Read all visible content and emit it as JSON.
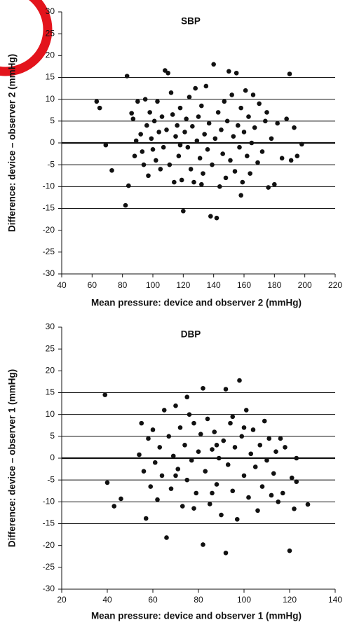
{
  "chart_data": [
    {
      "type": "scatter",
      "title": "SBP",
      "x_label": "Mean pressure: device and observer 2 (mmHg)",
      "y_label": "Difference: device – observer 2 (mmHg)",
      "color": "#111111",
      "xlim": [
        40,
        220
      ],
      "xticks": [
        40,
        60,
        80,
        100,
        120,
        140,
        160,
        180,
        200,
        220
      ],
      "ylim": [
        -30,
        30
      ],
      "yticks": [
        -30,
        -25,
        -20,
        -15,
        -10,
        -5,
        0,
        5,
        10,
        15,
        20,
        25,
        30
      ],
      "hlines": [
        15,
        10,
        5,
        0,
        -5,
        -10,
        -15
      ],
      "x": [
        63,
        65,
        69,
        73,
        83,
        82,
        84,
        86,
        87,
        88,
        89,
        90,
        92,
        93,
        94,
        95,
        96,
        97,
        98,
        99,
        100,
        101,
        102,
        103,
        104,
        105,
        106,
        107,
        108,
        109,
        110,
        111,
        112,
        113,
        114,
        115,
        116,
        117,
        118,
        119,
        120,
        121,
        122,
        123,
        124,
        125,
        126,
        127,
        128,
        129,
        130,
        131,
        132,
        133,
        134,
        135,
        136,
        137,
        138,
        139,
        140,
        141,
        142,
        143,
        144,
        145,
        146,
        147,
        148,
        149,
        150,
        151,
        152,
        153,
        154,
        155,
        156,
        157,
        158,
        159,
        160,
        161,
        162,
        163,
        164,
        165,
        167,
        169,
        170,
        172,
        174,
        176,
        178,
        180,
        182,
        185,
        188,
        190,
        191,
        193,
        195,
        198,
        175,
        166,
        158,
        132,
        118
      ],
      "y": [
        9.5,
        8,
        -0.5,
        -6.3,
        15.3,
        -14.3,
        -9.8,
        6.8,
        5.5,
        -3,
        0.5,
        9.5,
        2,
        -2,
        -5,
        10,
        4,
        -7.5,
        7,
        1,
        -1.5,
        5,
        -4,
        9.5,
        2.5,
        -6,
        6,
        -1,
        16.6,
        3,
        16,
        -5,
        11.5,
        6.5,
        -9,
        1.5,
        4,
        -3,
        8,
        -8.5,
        -15.6,
        2.5,
        5.5,
        -1,
        10.5,
        -6,
        3.8,
        -9,
        12.5,
        0.5,
        6,
        -3.5,
        8.5,
        -7,
        2,
        13,
        -1.5,
        4.5,
        -16.8,
        -5,
        18,
        1,
        -17.2,
        7,
        -10,
        3,
        -2.5,
        9.5,
        -8,
        5,
        16.4,
        -4,
        11,
        1.5,
        -6.5,
        16,
        4,
        -1,
        8,
        -9,
        2.5,
        12,
        -3,
        6,
        -7,
        0,
        3.5,
        -4.5,
        9,
        -2,
        5,
        -10.2,
        1,
        -9.5,
        4.5,
        -3.5,
        5.5,
        15.8,
        -4,
        3.5,
        -3,
        -0.3,
        7,
        11,
        -12,
        -9.5,
        -0.5
      ]
    },
    {
      "type": "scatter",
      "title": "DBP",
      "x_label": "Mean pressure: device and observer 1 (mmHg)",
      "y_label": "Difference: device – observer 1 (mmHg)",
      "color": "#111111",
      "xlim": [
        20,
        140
      ],
      "xticks": [
        20,
        40,
        60,
        80,
        100,
        120,
        140
      ],
      "ylim": [
        -30,
        30
      ],
      "yticks": [
        -30,
        -25,
        -20,
        -15,
        -10,
        -5,
        0,
        5,
        10,
        15,
        20,
        25,
        30
      ],
      "hlines": [
        15,
        10,
        5,
        0,
        -5,
        -10,
        -15
      ],
      "x": [
        39,
        40,
        43,
        46,
        54,
        55,
        56,
        57,
        58,
        59,
        60,
        61,
        62,
        63,
        64,
        65,
        66,
        67,
        68,
        69,
        70,
        71,
        72,
        73,
        74,
        75,
        76,
        77,
        78,
        79,
        80,
        81,
        82,
        82,
        83,
        84,
        85,
        86,
        87,
        88,
        89,
        90,
        91,
        92,
        92,
        93,
        94,
        95,
        96,
        97,
        98,
        99,
        100,
        101,
        102,
        103,
        104,
        105,
        106,
        107,
        108,
        109,
        110,
        111,
        112,
        113,
        114,
        115,
        116,
        117,
        118,
        120,
        121,
        122,
        123,
        123,
        128,
        75,
        86,
        95,
        78,
        70,
        100,
        88
      ],
      "y": [
        14.5,
        -5.6,
        -11,
        -9.3,
        0.8,
        8,
        -3,
        -13.8,
        4.5,
        -6.5,
        6.5,
        -1,
        -9.5,
        2.5,
        -4,
        11,
        -18.2,
        5,
        -7,
        0.5,
        12,
        -2.5,
        7,
        -11,
        3,
        -5,
        10,
        -0.5,
        8,
        -8,
        1.5,
        5.5,
        16,
        -19.8,
        -3,
        9,
        -10.5,
        2,
        6,
        -6,
        0,
        -13,
        4,
        15.8,
        -21.7,
        -1.5,
        8,
        -7.5,
        2.5,
        -14,
        17.8,
        5,
        -4,
        11,
        -9,
        1,
        6.5,
        -2,
        -12,
        3,
        -6.5,
        8.5,
        -0.5,
        4.5,
        -8.5,
        -3.5,
        1.5,
        -10,
        4.5,
        -8,
        2.5,
        -21.2,
        -4.5,
        -11.6,
        -5.4,
        0,
        -10.6,
        14,
        -8,
        9.5,
        -11.5,
        -4,
        7,
        3
      ]
    }
  ]
}
